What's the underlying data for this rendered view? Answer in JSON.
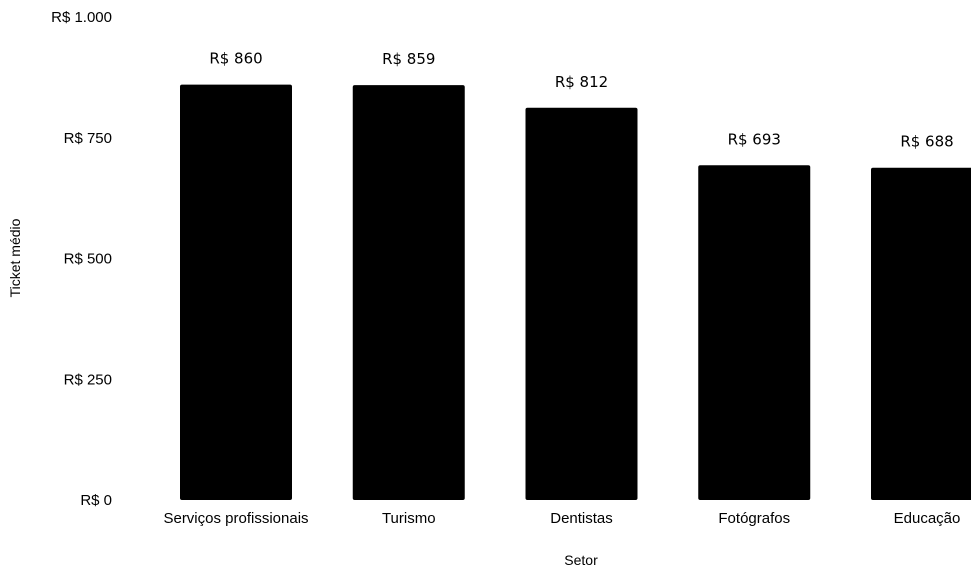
{
  "chart_data": {
    "type": "bar",
    "xlabel": "Setor",
    "ylabel": "Ticket médio",
    "categories": [
      "Serviços profissionais",
      "Turismo",
      "Dentistas",
      "Fotógrafos",
      "Educação"
    ],
    "values": [
      860,
      859,
      812,
      693,
      688
    ],
    "data_labels": [
      "R$ 860",
      "R$ 859",
      "R$ 812",
      "R$ 693",
      "R$ 688"
    ],
    "ylim": [
      0,
      1000
    ],
    "yticks": [
      0,
      250,
      500,
      750,
      1000
    ],
    "ytick_labels": [
      "R$ 0",
      "R$ 250",
      "R$ 500",
      "R$ 750",
      "R$ 1.000"
    ],
    "grid": false,
    "bar_color": "#000000"
  }
}
